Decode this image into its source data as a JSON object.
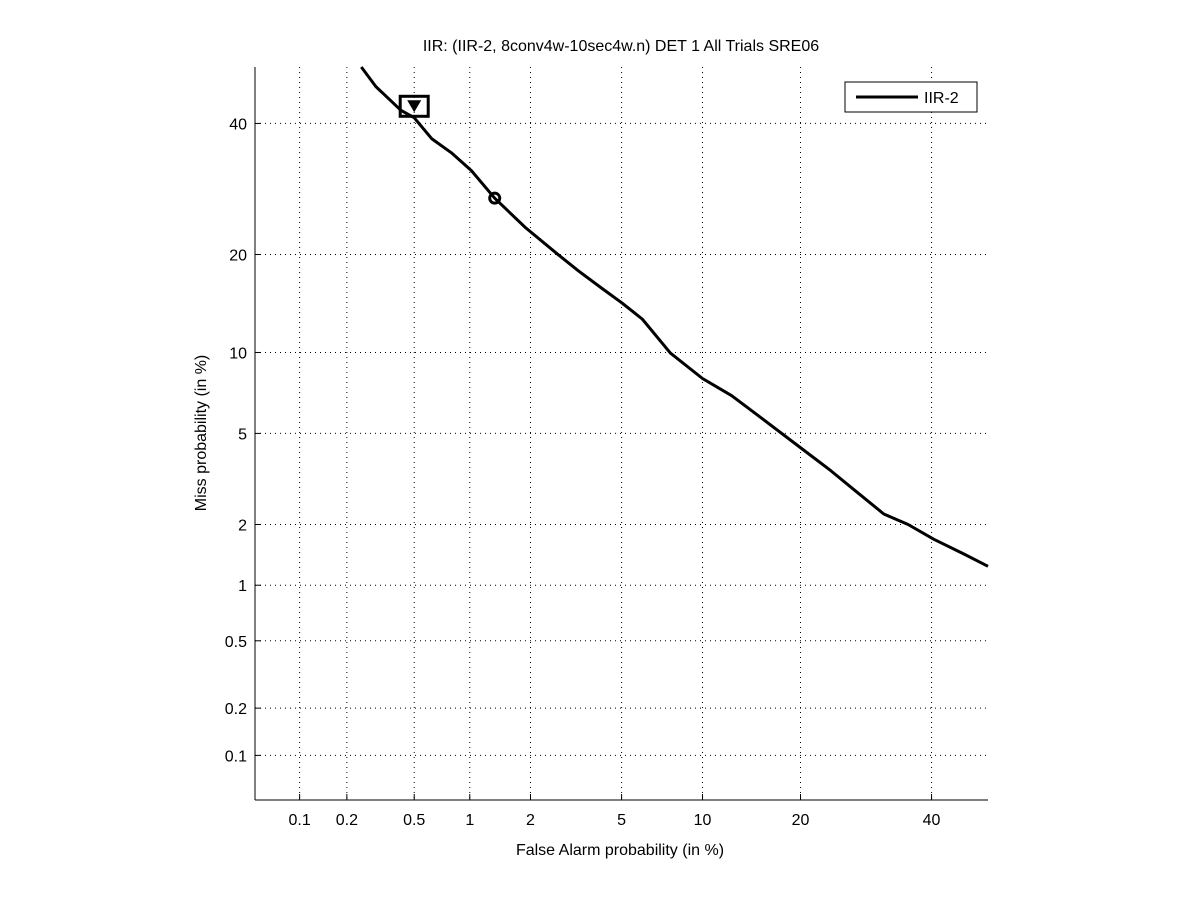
{
  "chart_data": {
    "type": "line",
    "scale": "normal-deviate (DET)",
    "title": "IIR: (IIR-2, 8conv4w-10sec4w.n) DET 1 All Trials SRE06",
    "xlabel": "False Alarm probability (in %)",
    "ylabel": "Miss probability (in %)",
    "xlim": [
      0.05,
      50
    ],
    "ylim": [
      0.05,
      50
    ],
    "xticks": [
      0.1,
      0.2,
      0.5,
      1,
      2,
      5,
      10,
      20,
      40
    ],
    "xtick_labels": [
      "0.1",
      "0.2",
      "0.5",
      "1",
      "2",
      "5",
      "10",
      "20",
      "40"
    ],
    "yticks": [
      0.1,
      0.2,
      0.5,
      1,
      2,
      5,
      10,
      20,
      40
    ],
    "ytick_labels": [
      "0.1",
      "0.2",
      "0.5",
      "1",
      "2",
      "5",
      "10",
      "20",
      "40"
    ],
    "grid": true,
    "legend": {
      "position": "top-right",
      "entries": [
        "IIR-2"
      ]
    },
    "series": [
      {
        "name": "IIR-2",
        "color": "#000000",
        "x": [
          0.245,
          0.3,
          0.42,
          0.5,
          0.625,
          0.8,
          1.02,
          1.34,
          1.9,
          2.65,
          3.3,
          4.16,
          5.0,
          6.03,
          7.7,
          10,
          12.5,
          15.6,
          20.3,
          24,
          27.3,
          32,
          36,
          40.4,
          45.7,
          50
        ],
        "y": [
          50,
          46.5,
          42.3,
          41,
          37.4,
          35,
          32.1,
          27.8,
          23.5,
          20.1,
          18,
          16.0,
          14.5,
          12.9,
          9.95,
          8.1,
          7.0,
          5.7,
          4.3,
          3.5,
          2.9,
          2.24,
          2.0,
          1.7,
          1.44,
          1.25
        ]
      }
    ],
    "markers": [
      {
        "shape": "square-with-triangle",
        "x": 0.5,
        "y": 43
      },
      {
        "shape": "circle",
        "x": 1.34,
        "y": 27.8
      }
    ]
  }
}
